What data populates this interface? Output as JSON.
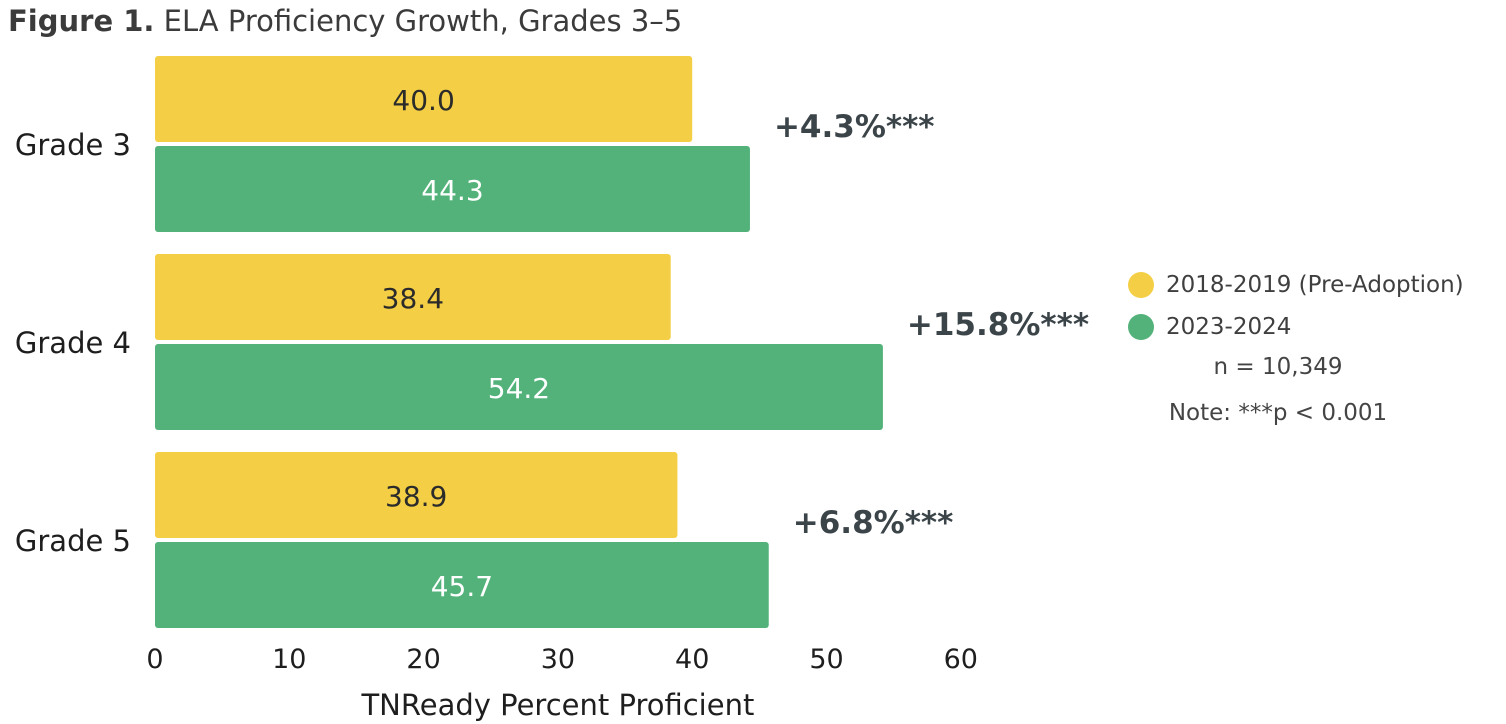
{
  "figure": {
    "label": "Figure 1.",
    "title": "ELA Proficiency Growth, Grades 3–5"
  },
  "colors": {
    "pre": "#f4cf45",
    "post": "#52b27a",
    "diff": "#3b4448"
  },
  "legend": {
    "items": [
      {
        "label": "2018-2019 (Pre-Adoption)",
        "color": "#f4cf45"
      },
      {
        "label": "2023-2024",
        "color": "#52b27a"
      }
    ],
    "n_text": "n = 10,349",
    "note_text": "Note: ***p < 0.001"
  },
  "chart_data": {
    "type": "bar",
    "orientation": "horizontal",
    "title": "ELA Proficiency Growth, Grades 3–5",
    "xlabel": "TNReady Percent Proficient",
    "ylabel": "",
    "xlim": [
      0,
      60
    ],
    "xticks": [
      0,
      10,
      20,
      30,
      40,
      50,
      60
    ],
    "categories": [
      "Grade 3",
      "Grade 4",
      "Grade 5"
    ],
    "series": [
      {
        "name": "2018-2019 (Pre-Adoption)",
        "values": [
          40.0,
          38.4,
          38.9
        ],
        "labels": [
          "40.0",
          "38.4",
          "38.9"
        ]
      },
      {
        "name": "2023-2024",
        "values": [
          44.3,
          54.2,
          45.7
        ],
        "labels": [
          "44.3",
          "54.2",
          "45.7"
        ]
      }
    ],
    "annotations": [
      "+4.3%***",
      "+15.8%***",
      "+6.8%***"
    ],
    "grid": false,
    "legend_position": "right"
  }
}
